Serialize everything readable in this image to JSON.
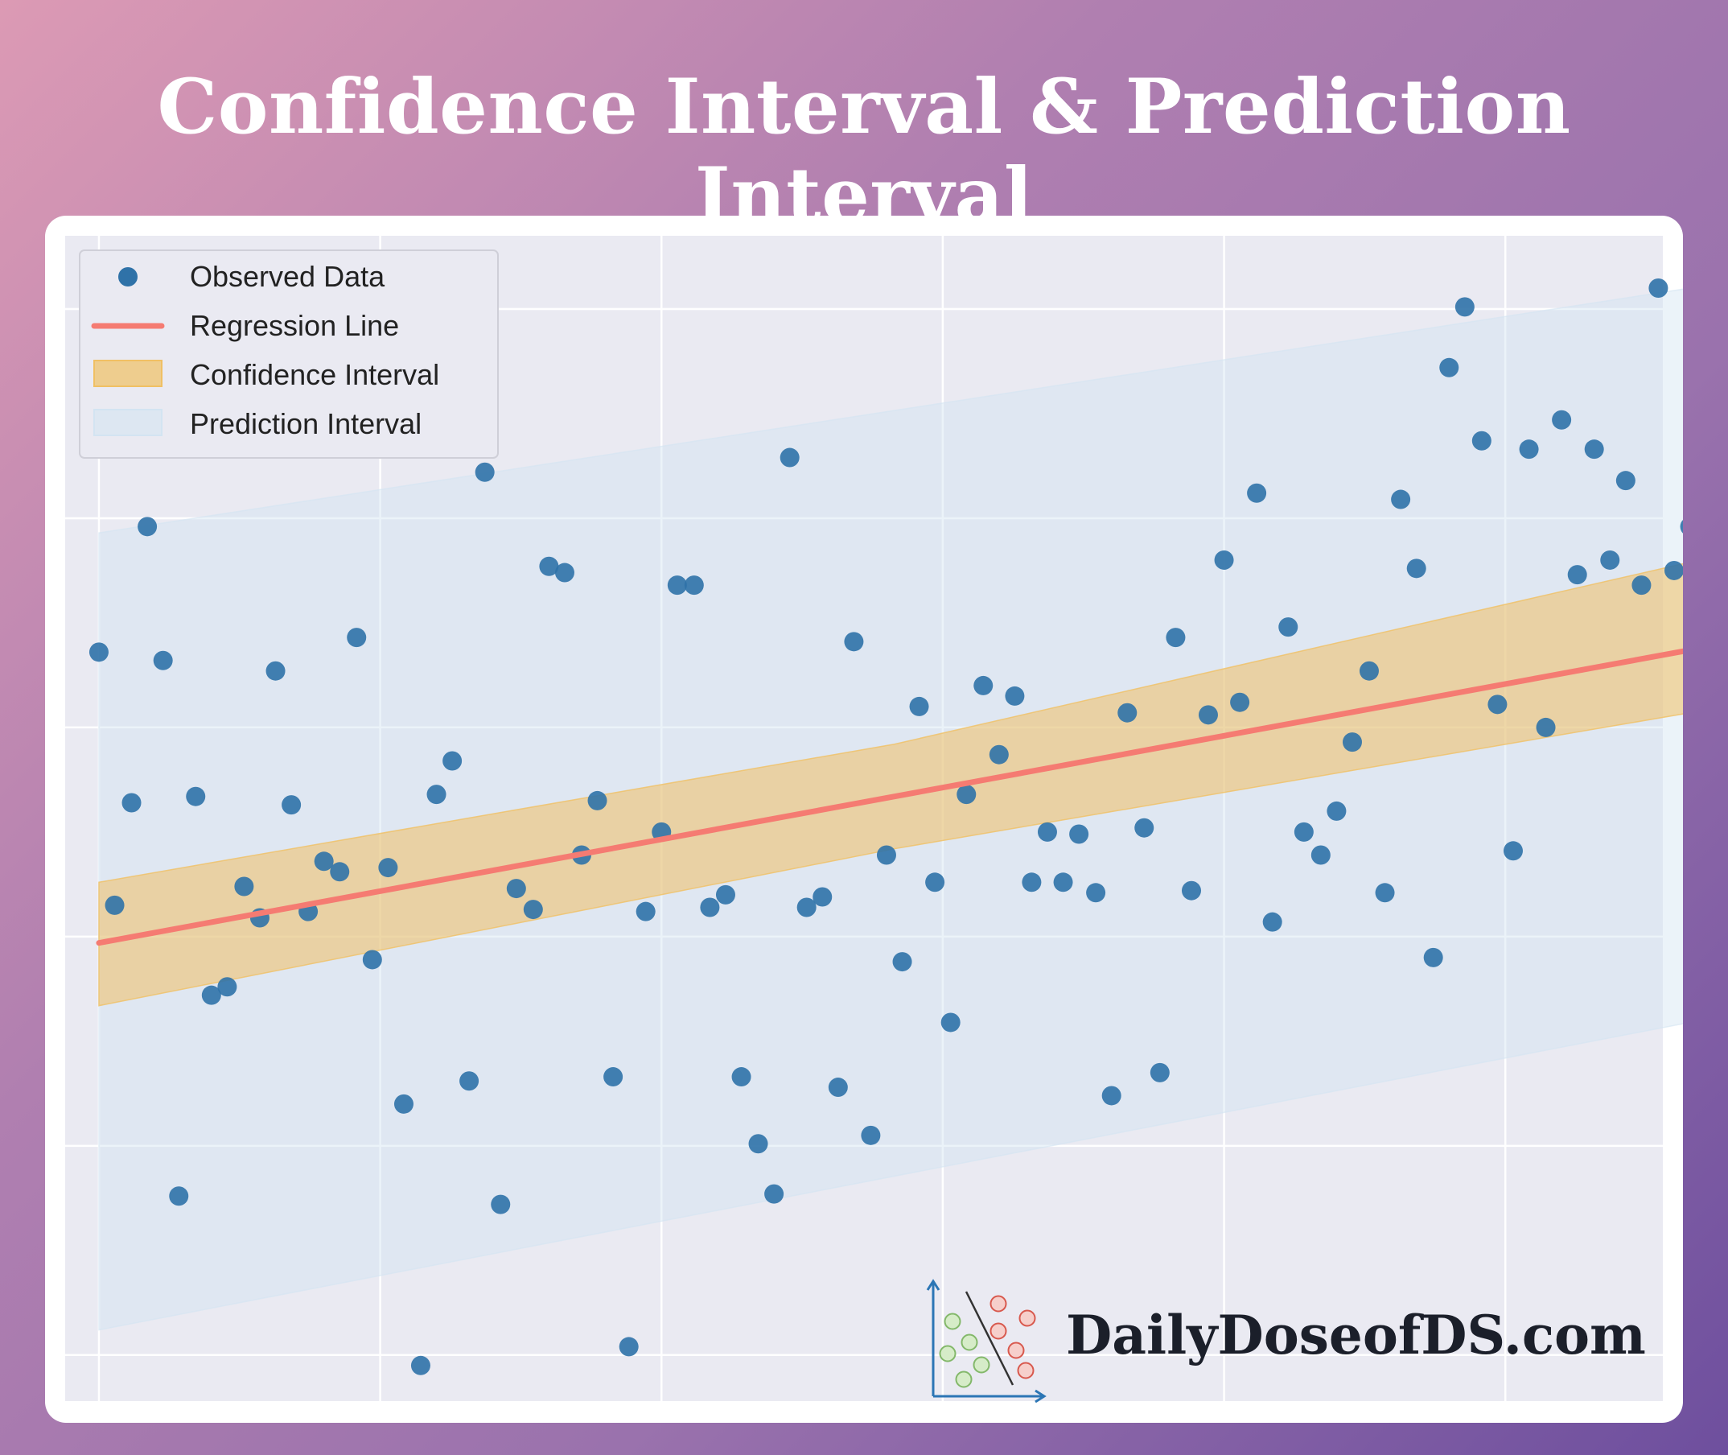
{
  "title": "Confidence Interval & Prediction Interval",
  "brand": "DailyDoseofDS.com",
  "colors": {
    "points": "#2f72a8",
    "regression": "#f57b72",
    "confidence_fill": "#f0c064",
    "prediction_fill": "#d3e4f2",
    "plot_bg": "#eaeaf2",
    "grid": "#ffffff"
  },
  "chart_data": {
    "type": "scatter",
    "title": "Confidence Interval & Prediction Interval",
    "xlabel": "",
    "ylabel": "",
    "grid": true,
    "xlim": [
      -0.3,
      13.9
    ],
    "ylim": [
      -22.2,
      33.5
    ],
    "legend_position": "top-left",
    "legend": [
      "Observed Data",
      "Regression Line",
      "Confidence Interval",
      "Prediction Interval"
    ],
    "series": [
      {
        "name": "Observed Data",
        "kind": "scatter",
        "points": [
          [
            0.0,
            13.6
          ],
          [
            0.14,
            1.5
          ],
          [
            0.29,
            6.4
          ],
          [
            0.43,
            19.6
          ],
          [
            0.57,
            13.2
          ],
          [
            0.71,
            -12.4
          ],
          [
            0.86,
            6.7
          ],
          [
            1.0,
            -2.8
          ],
          [
            1.14,
            -2.4
          ],
          [
            1.29,
            2.4
          ],
          [
            1.43,
            0.9
          ],
          [
            1.57,
            12.7
          ],
          [
            1.71,
            6.3
          ],
          [
            1.86,
            1.2
          ],
          [
            2.0,
            3.6
          ],
          [
            2.14,
            3.1
          ],
          [
            2.29,
            14.3
          ],
          [
            2.43,
            -1.1
          ],
          [
            2.57,
            3.3
          ],
          [
            2.71,
            -8.0
          ],
          [
            2.86,
            -20.5
          ],
          [
            3.0,
            6.8
          ],
          [
            3.14,
            8.4
          ],
          [
            3.29,
            -6.9
          ],
          [
            3.43,
            22.2
          ],
          [
            3.57,
            -12.8
          ],
          [
            3.71,
            2.3
          ],
          [
            3.86,
            1.3
          ],
          [
            4.0,
            17.7
          ],
          [
            4.14,
            17.4
          ],
          [
            4.29,
            3.9
          ],
          [
            4.43,
            6.5
          ],
          [
            4.57,
            -6.7
          ],
          [
            4.71,
            -19.6
          ],
          [
            4.86,
            1.2
          ],
          [
            5.0,
            5.0
          ],
          [
            5.14,
            16.8
          ],
          [
            5.29,
            16.8
          ],
          [
            5.43,
            1.4
          ],
          [
            5.57,
            2.0
          ],
          [
            5.71,
            -6.7
          ],
          [
            5.86,
            -9.9
          ],
          [
            6.0,
            -12.3
          ],
          [
            6.14,
            22.9
          ],
          [
            6.29,
            1.4
          ],
          [
            6.43,
            1.9
          ],
          [
            6.57,
            -7.2
          ],
          [
            6.71,
            14.1
          ],
          [
            6.86,
            -9.5
          ],
          [
            7.0,
            3.9
          ],
          [
            7.14,
            -1.2
          ],
          [
            7.29,
            11.0
          ],
          [
            7.43,
            2.6
          ],
          [
            7.57,
            -4.1
          ],
          [
            7.71,
            6.8
          ],
          [
            7.86,
            12.0
          ],
          [
            8.0,
            8.7
          ],
          [
            8.14,
            11.5
          ],
          [
            8.29,
            2.6
          ],
          [
            8.43,
            5.0
          ],
          [
            8.57,
            2.6
          ],
          [
            8.71,
            4.9
          ],
          [
            8.86,
            2.1
          ],
          [
            9.0,
            -7.6
          ],
          [
            9.14,
            10.7
          ],
          [
            9.29,
            5.2
          ],
          [
            9.43,
            -6.5
          ],
          [
            9.57,
            14.3
          ],
          [
            9.71,
            2.2
          ],
          [
            9.86,
            10.6
          ],
          [
            10.0,
            18.0
          ],
          [
            10.14,
            11.2
          ],
          [
            10.29,
            21.2
          ],
          [
            10.43,
            0.7
          ],
          [
            10.57,
            14.8
          ],
          [
            10.71,
            5.0
          ],
          [
            10.86,
            3.9
          ],
          [
            11.0,
            6.0
          ],
          [
            11.14,
            9.3
          ],
          [
            11.29,
            12.7
          ],
          [
            11.43,
            2.1
          ],
          [
            11.57,
            20.9
          ],
          [
            11.71,
            17.6
          ],
          [
            11.86,
            -1.0
          ],
          [
            12.0,
            27.2
          ],
          [
            12.14,
            30.1
          ],
          [
            12.29,
            23.7
          ],
          [
            12.43,
            11.1
          ],
          [
            12.57,
            4.1
          ],
          [
            12.71,
            23.3
          ],
          [
            12.86,
            10.0
          ],
          [
            13.0,
            24.7
          ],
          [
            13.14,
            17.3
          ],
          [
            13.29,
            23.3
          ],
          [
            13.43,
            18.0
          ],
          [
            13.57,
            21.8
          ],
          [
            13.71,
            16.8
          ],
          [
            13.86,
            31.0
          ],
          [
            14.0,
            17.5
          ],
          [
            14.14,
            19.6
          ]
        ]
      },
      {
        "name": "Regression Line",
        "kind": "line",
        "x": [
          0,
          14.14
        ],
        "y": [
          -0.3,
          13.7
        ]
      },
      {
        "name": "Confidence Interval",
        "kind": "band",
        "x": [
          0,
          7.07,
          14.14
        ],
        "lower": [
          -3.3,
          4.2,
          10.7
        ],
        "upper": [
          2.6,
          9.2,
          17.9
        ]
      },
      {
        "name": "Prediction Interval",
        "kind": "band",
        "x": [
          0,
          14.14
        ],
        "lower": [
          -18.8,
          -4.1
        ],
        "upper": [
          19.3,
          31.0
        ]
      }
    ]
  }
}
